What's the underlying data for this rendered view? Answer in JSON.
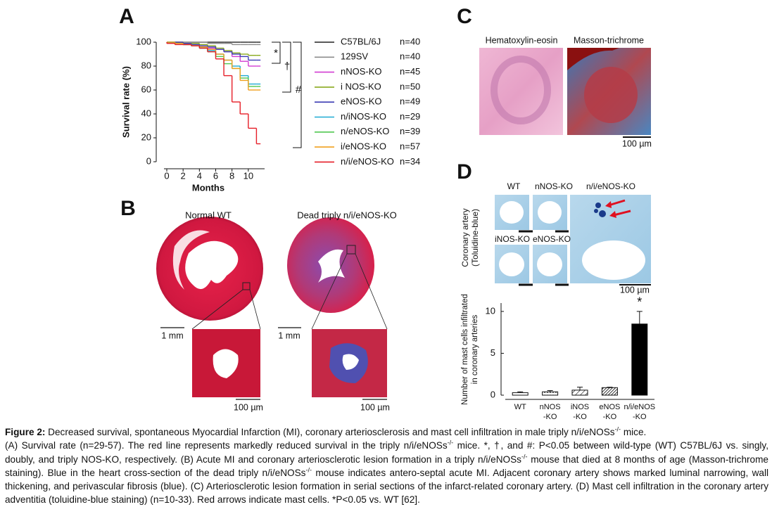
{
  "panel_labels": [
    "A",
    "B",
    "C",
    "D"
  ],
  "chart_data": [
    {
      "type": "line",
      "step": true,
      "ylabel": "Survival rate (%)",
      "xlabel": "Months",
      "x": [
        0,
        1,
        2,
        3,
        4,
        5,
        6,
        7,
        8,
        9,
        10,
        11,
        11.5
      ],
      "xlim": [
        0,
        12
      ],
      "xticks": [
        0,
        2,
        4,
        6,
        8,
        10
      ],
      "ylim": [
        0,
        100
      ],
      "yticks": [
        0,
        20,
        40,
        60,
        80,
        100
      ],
      "series": [
        {
          "name": "C57BL/6J",
          "count_label": "n=40",
          "color": "#222222",
          "values": [
            100,
            100,
            100,
            100,
            100,
            100,
            100,
            100,
            100,
            100,
            100,
            100,
            100
          ]
        },
        {
          "name": "129SV",
          "count_label": "n=40",
          "color": "#8c8c8c",
          "values": [
            100,
            100,
            100,
            100,
            100,
            100,
            99,
            99,
            99,
            98,
            98,
            98,
            98
          ]
        },
        {
          "name": "nNOS-KO",
          "count_label": "n=45",
          "color": "#d23cd2",
          "values": [
            100,
            100,
            99,
            98,
            97,
            96,
            95,
            94,
            92,
            88,
            84,
            80,
            80
          ]
        },
        {
          "name": "i NOS-KO",
          "count_label": "n=50",
          "color": "#8aaa1e",
          "values": [
            100,
            100,
            100,
            99,
            99,
            98,
            97,
            95,
            93,
            91,
            90,
            89,
            89
          ]
        },
        {
          "name": "eNOS-KO",
          "count_label": "n=49",
          "color": "#3c3cb4",
          "values": [
            100,
            100,
            100,
            99,
            98,
            97,
            96,
            94,
            92,
            90,
            88,
            85,
            85
          ]
        },
        {
          "name": "n/iNOS-KO",
          "count_label": "n=29",
          "color": "#1eaad2",
          "values": [
            100,
            100,
            99,
            98,
            97,
            95,
            93,
            90,
            85,
            80,
            72,
            65,
            65
          ]
        },
        {
          "name": "n/eNOS-KO",
          "count_label": "n=39",
          "color": "#50c850",
          "values": [
            100,
            100,
            99,
            98,
            97,
            95,
            92,
            88,
            82,
            78,
            70,
            63,
            63
          ]
        },
        {
          "name": "i/eNOS-KO",
          "count_label": "n=57",
          "color": "#f0a01e",
          "values": [
            100,
            100,
            99,
            98,
            97,
            96,
            94,
            90,
            85,
            78,
            68,
            60,
            60
          ]
        },
        {
          "name": "n/i/eNOS-KO",
          "count_label": "n=34",
          "color": "#e61e28",
          "values": [
            100,
            99,
            98,
            98,
            97,
            95,
            92,
            86,
            72,
            50,
            40,
            28,
            15
          ]
        }
      ],
      "annotations": [
        "*",
        "†",
        "#"
      ]
    },
    {
      "type": "bar",
      "ylabel": "Number of mast cells infiltrated\nin coronary arteries",
      "categories": [
        "WT",
        "nNOS\n-KO",
        "iNOS\n-KO",
        "eNOS\n-KO",
        "n/i/eNOS\n-KO"
      ],
      "values": [
        0.3,
        0.4,
        0.6,
        0.9,
        8.5
      ],
      "errors": [
        0.1,
        0.15,
        0.35,
        0.05,
        1.5
      ],
      "fills": [
        "#ffffff",
        "dots",
        "hatch",
        "dense-hatch",
        "#000000"
      ],
      "ylim": [
        0,
        11
      ],
      "yticks": [
        0,
        5,
        10
      ],
      "annotations": [
        "*"
      ]
    }
  ],
  "panel_b": {
    "left_title": "Normal WT",
    "right_title": "Dead triply n/i/eNOS-KO",
    "scale_bars": [
      "1 mm",
      "1 mm",
      "100 µm",
      "100 µm"
    ]
  },
  "panel_c": {
    "left_title": "Hematoxylin-eosin",
    "right_title": "Masson-trichrome",
    "scale_bar": "100 µm"
  },
  "panel_d": {
    "image_labels": [
      "WT",
      "nNOS-KO",
      "n/i/eNOS-KO",
      "iNOS-KO",
      "eNOS-KO"
    ],
    "side_label": "Coronary artery\n(Toluidine-blue)",
    "scale_bar": "100 µm"
  },
  "caption": {
    "label": "Figure 2:",
    "paragraphs": [
      [
        {
          "text": " Decreased survival, spontaneous Myocardial Infarction (MI), coronary arteriosclerosis and mast cell infiltration in male triply n/i/eNOSs"
        },
        {
          "sup": "-/-"
        },
        {
          "text": " mice."
        }
      ],
      [
        {
          "text": "(A) Survival rate (n=29-57). The red line represents markedly reduced survival in the triply n/i/eNOSs"
        },
        {
          "sup": "-/-"
        },
        {
          "text": " mice. *, †, and #: P<0.05 between wild-type (WT) C57BL/6J vs. singly, doubly, and triply NOS-KO, respectively. (B) Acute MI and coronary arteriosclerotic lesion formation in a triply n/i/eNOSs"
        },
        {
          "sup": "-/-"
        },
        {
          "text": " mouse that died at 8 months of age (Masson-trichrome staining). Blue in the heart cross-section of the dead triply n/i/eNOSs"
        },
        {
          "sup": "-/-"
        },
        {
          "text": " mouse indicates antero-septal acute MI. Adjacent coronary artery shows marked luminal narrowing, wall thickening, and perivascular fibrosis (blue). (C) Arteriosclerotic lesion formation in serial sections of the infarct-related coronary artery. (D) Mast cell infiltration in the coronary artery adventitia (toluidine-blue staining) (n=10-33). Red arrows indicate mast cells. *P<0.05 vs. WT [62]."
        }
      ]
    ]
  }
}
